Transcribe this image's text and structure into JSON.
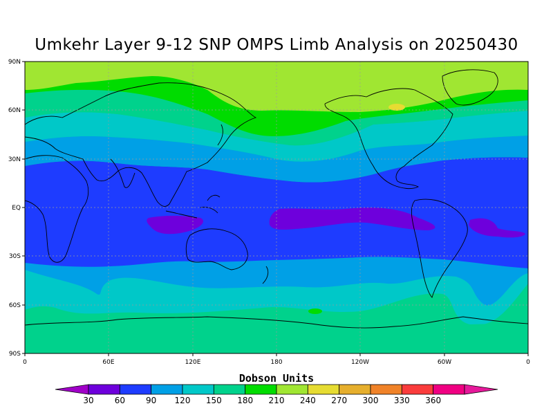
{
  "title": "Umkehr Layer 9-12 SNP OMPS Limb Analysis on 20250430",
  "lat_ticks": [
    "90N",
    "60N",
    "30N",
    "EQ",
    "30S",
    "60S",
    "90S"
  ],
  "lon_ticks": [
    "0",
    "60E",
    "120E",
    "180",
    "120W",
    "60W",
    "0"
  ],
  "colorbar": {
    "title": "Dobson Units",
    "values": [
      "30",
      "60",
      "90",
      "120",
      "150",
      "180",
      "210",
      "240",
      "270",
      "300",
      "330",
      "360"
    ],
    "colors": [
      "#a000c8",
      "#6e00dc",
      "#1e3cff",
      "#00a0e6",
      "#00c8c8",
      "#00d28c",
      "#00dc00",
      "#a0e632",
      "#e6dc32",
      "#e6af2d",
      "#f08228",
      "#fa3c3c",
      "#f00082",
      "#e6199b"
    ]
  },
  "map_bands": {
    "north_cap": "#a0e632",
    "north_high": "#00dc00",
    "north_mid": "#00d28c",
    "north_sub": "#00c8c8",
    "north_low": "#00a0e6",
    "tropics": "#1e3cff",
    "tropic_min": "#6e00dc",
    "south_low": "#00a0e6",
    "south_mid": "#00c8c8",
    "south_high": "#00d28c",
    "hotspot": "#e6dc32"
  }
}
